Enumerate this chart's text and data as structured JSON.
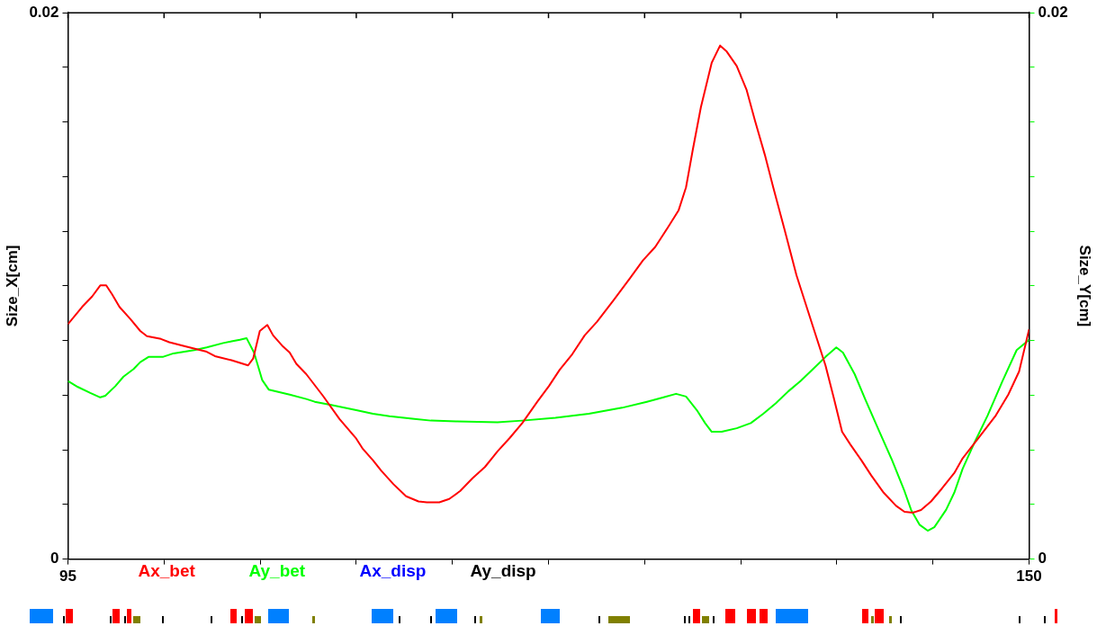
{
  "chart_data": {
    "type": "line",
    "xlabel": null,
    "ylabel": "Size_X[cm]",
    "y2label": "Size_Y[cm]",
    "xlim": [
      95,
      150
    ],
    "xticks": [
      95,
      {
        "value": 100.5,
        "label": null
      },
      {
        "value": 106,
        "label": null
      },
      {
        "value": 111.5,
        "label": null
      },
      {
        "value": 117,
        "label": null
      },
      {
        "value": 122.5,
        "label": null
      },
      {
        "value": 128,
        "label": null
      },
      {
        "value": 133.5,
        "label": null
      },
      {
        "value": 139,
        "label": null
      },
      {
        "value": 144.5,
        "label": null
      },
      150
    ],
    "ylim": [
      0,
      0.02
    ],
    "yticks": [
      0,
      {
        "value": 0.002,
        "label": null
      },
      {
        "value": 0.004,
        "label": null
      },
      {
        "value": 0.006,
        "label": null
      },
      {
        "value": 0.008,
        "label": null
      },
      {
        "value": 0.01,
        "label": null
      },
      {
        "value": 0.012,
        "label": null
      },
      {
        "value": 0.014,
        "label": null
      },
      {
        "value": 0.016,
        "label": null
      },
      {
        "value": 0.018,
        "label": null
      },
      0.02
    ],
    "y2lim": [
      0,
      0.02
    ],
    "y2ticks": [
      0,
      {
        "value": 0.002,
        "label": null
      },
      {
        "value": 0.004,
        "label": null
      },
      {
        "value": 0.006,
        "label": null
      },
      {
        "value": 0.008,
        "label": null
      },
      {
        "value": 0.01,
        "label": null
      },
      {
        "value": 0.012,
        "label": null
      },
      {
        "value": 0.014,
        "label": null
      },
      {
        "value": 0.016,
        "label": null
      },
      {
        "value": 0.018,
        "label": null
      },
      0.02
    ],
    "grid": false,
    "legend": "bottom",
    "marker": "none",
    "line_style": "solid",
    "series": [
      {
        "name": "Ax_bet",
        "color": "#ff0000",
        "x": [
          95.0,
          95.81,
          96.38,
          96.85,
          97.19,
          97.52,
          97.95,
          98.57,
          99.14,
          99.52,
          100.32,
          100.8,
          101.75,
          102.94,
          103.41,
          104.36,
          105.31,
          105.6,
          105.98,
          106.41,
          106.74,
          107.31,
          107.69,
          108.07,
          108.64,
          109.59,
          110.54,
          111.5,
          111.88,
          112.45,
          112.92,
          113.63,
          114.35,
          115.06,
          115.54,
          116.25,
          116.82,
          117.44,
          118.15,
          118.86,
          119.58,
          120.29,
          121.0,
          121.86,
          122.52,
          123.14,
          123.86,
          124.57,
          125.28,
          126.23,
          127.18,
          127.9,
          128.61,
          129.32,
          129.94,
          130.37,
          130.75,
          131.22,
          131.84,
          132.32,
          132.7,
          133.27,
          133.84,
          134.31,
          134.88,
          135.36,
          135.98,
          136.69,
          137.64,
          138.35,
          138.83,
          139.3,
          139.78,
          140.4,
          140.97,
          141.68,
          142.39,
          142.87,
          143.35,
          143.82,
          144.39,
          145.01,
          145.72,
          146.2,
          147.15,
          148.1,
          148.81,
          149.43,
          150.0
        ],
        "values": [
          0.0086,
          0.00923,
          0.00961,
          0.01002,
          0.01002,
          0.0097,
          0.00923,
          0.00879,
          0.00835,
          0.00816,
          0.00806,
          0.00794,
          0.00778,
          0.00759,
          0.00743,
          0.00728,
          0.00709,
          0.00734,
          0.00835,
          0.00857,
          0.00819,
          0.00778,
          0.00756,
          0.00715,
          0.00677,
          0.00598,
          0.00513,
          0.00441,
          0.00403,
          0.00362,
          0.00324,
          0.00274,
          0.0023,
          0.00211,
          0.00208,
          0.00208,
          0.0022,
          0.00249,
          0.00296,
          0.00337,
          0.00394,
          0.00444,
          0.00498,
          0.00576,
          0.00633,
          0.00693,
          0.0075,
          0.00819,
          0.00869,
          0.00948,
          0.0103,
          0.01093,
          0.01143,
          0.01213,
          0.01276,
          0.01361,
          0.01496,
          0.01654,
          0.01817,
          0.0188,
          0.01858,
          0.01805,
          0.01717,
          0.01606,
          0.0148,
          0.01361,
          0.01213,
          0.01039,
          0.0085,
          0.00709,
          0.00589,
          0.00466,
          0.00419,
          0.00362,
          0.00306,
          0.00243,
          0.00195,
          0.00173,
          0.0017,
          0.0018,
          0.00211,
          0.00258,
          0.00315,
          0.00369,
          0.00447,
          0.00526,
          0.00602,
          0.00687,
          0.00841
        ]
      },
      {
        "name": "Ay_bet",
        "color": "#00ff00",
        "axis": "y2",
        "x": [
          95.0,
          95.57,
          96.28,
          96.85,
          97.14,
          97.71,
          98.18,
          98.76,
          99.14,
          99.61,
          100.42,
          101.04,
          102.23,
          102.94,
          103.89,
          104.36,
          104.84,
          105.22,
          105.65,
          106.12,
          106.5,
          107.69,
          108.64,
          109.12,
          110.07,
          111.5,
          112.45,
          113.4,
          114.82,
          115.77,
          117.2,
          119.58,
          121.0,
          122.9,
          124.81,
          126.71,
          128.13,
          129.08,
          129.8,
          130.37,
          130.99,
          131.46,
          131.84,
          132.41,
          133.27,
          134.08,
          134.79,
          135.5,
          136.22,
          136.93,
          137.64,
          138.35,
          138.97,
          139.35,
          140.02,
          140.64,
          141.44,
          142.16,
          142.87,
          143.25,
          143.73,
          144.2,
          144.58,
          145.25,
          145.72,
          146.2,
          146.91,
          147.63,
          148.48,
          149.29,
          150.0
        ],
        "values": [
          0.00652,
          0.0063,
          0.00608,
          0.00592,
          0.00598,
          0.00633,
          0.00668,
          0.00696,
          0.00721,
          0.0074,
          0.0074,
          0.00753,
          0.00765,
          0.00775,
          0.00791,
          0.00797,
          0.00803,
          0.00809,
          0.00756,
          0.00655,
          0.0062,
          0.00602,
          0.00586,
          0.00576,
          0.00564,
          0.00545,
          0.00532,
          0.00523,
          0.00513,
          0.00507,
          0.00504,
          0.00501,
          0.00507,
          0.00517,
          0.00532,
          0.00554,
          0.00576,
          0.00592,
          0.00605,
          0.00595,
          0.00545,
          0.00498,
          0.00466,
          0.00466,
          0.00479,
          0.00498,
          0.00532,
          0.0057,
          0.00614,
          0.00652,
          0.00696,
          0.0074,
          0.00775,
          0.00756,
          0.00677,
          0.00583,
          0.00466,
          0.00362,
          0.00249,
          0.0018,
          0.00126,
          0.00104,
          0.00117,
          0.0018,
          0.00243,
          0.00331,
          0.00431,
          0.00526,
          0.00652,
          0.00765,
          0.00803
        ]
      },
      {
        "name": "Ax_disp",
        "color": "#0000ff"
      },
      {
        "name": "Ay_disp",
        "color": "#000000"
      }
    ]
  }
}
